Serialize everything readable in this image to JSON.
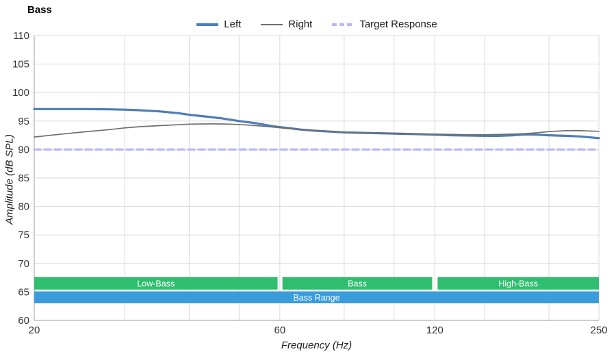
{
  "title": "Bass",
  "axes": {
    "xlabel": "Frequency (Hz)",
    "ylabel": "Amplitude (dB SPL)"
  },
  "legend": [
    {
      "label": "Left",
      "color": "#4e7db7",
      "swatch_width": 4,
      "dash": ""
    },
    {
      "label": "Right",
      "color": "#6e6e6e",
      "swatch_width": 2,
      "dash": ""
    },
    {
      "label": "Target Response",
      "color": "#b6b9f5",
      "swatch_width": 4,
      "dash": "7,4"
    }
  ],
  "chart_data": {
    "type": "line",
    "title": "Bass",
    "xlabel": "Frequency (Hz)",
    "ylabel": "Amplitude (dB SPL)",
    "x_scale": "log",
    "xlim": [
      20,
      250
    ],
    "ylim": [
      60,
      110
    ],
    "y_ticks": [
      60,
      65,
      70,
      75,
      80,
      85,
      90,
      95,
      100,
      105,
      110
    ],
    "x_gridlines": [
      20,
      30,
      40,
      50,
      60,
      80,
      100,
      120,
      150,
      200,
      250
    ],
    "x_ticks_labeled": [
      20,
      60,
      120,
      250
    ],
    "grid": true,
    "legend_position": "top-center",
    "colors": {
      "gridline": "#d9d9d9",
      "axis_line": "#9e9e9e",
      "tick_text": "#333333",
      "band_green": "#2fbe6f",
      "band_blue": "#3b9cdc",
      "band_text": "#ffffff"
    },
    "series": [
      {
        "name": "Left",
        "color": "#4e7db7",
        "width": 3.2,
        "dash": "",
        "x": [
          20,
          22,
          25,
          28,
          30,
          32,
          35,
          38,
          40,
          43,
          46,
          50,
          54,
          58,
          62,
          66,
          70,
          75,
          80,
          85,
          90,
          100,
          110,
          120,
          130,
          140,
          150,
          160,
          170,
          180,
          190,
          200,
          215,
          230,
          250
        ],
        "y": [
          97.1,
          97.1,
          97.1,
          97.05,
          97.0,
          96.9,
          96.7,
          96.4,
          96.1,
          95.8,
          95.5,
          95.0,
          94.6,
          94.1,
          93.8,
          93.5,
          93.3,
          93.15,
          93.0,
          92.95,
          92.9,
          92.8,
          92.7,
          92.6,
          92.5,
          92.45,
          92.4,
          92.4,
          92.5,
          92.65,
          92.6,
          92.5,
          92.4,
          92.3,
          92.0
        ]
      },
      {
        "name": "Right",
        "color": "#6e6e6e",
        "width": 1.7,
        "dash": "",
        "x": [
          20,
          22,
          25,
          28,
          30,
          32,
          35,
          38,
          40,
          43,
          46,
          50,
          54,
          58,
          62,
          66,
          70,
          75,
          80,
          85,
          90,
          100,
          110,
          120,
          130,
          140,
          150,
          160,
          170,
          180,
          190,
          200,
          215,
          230,
          250
        ],
        "y": [
          92.2,
          92.6,
          93.1,
          93.5,
          93.8,
          94.0,
          94.2,
          94.35,
          94.45,
          94.5,
          94.5,
          94.4,
          94.2,
          93.95,
          93.7,
          93.5,
          93.35,
          93.2,
          93.05,
          92.95,
          92.9,
          92.8,
          92.75,
          92.7,
          92.65,
          92.6,
          92.6,
          92.65,
          92.7,
          92.8,
          92.95,
          93.15,
          93.3,
          93.3,
          93.2
        ]
      },
      {
        "name": "Target Response",
        "color": "#b6b9f5",
        "width": 3.2,
        "dash": "9,6",
        "x": [
          20,
          250
        ],
        "y": [
          90,
          90
        ]
      }
    ],
    "bands": [
      {
        "label": "Low-Bass",
        "x_from": 20,
        "x_to": 59.4,
        "y_from": 65.4,
        "y_to": 67.6,
        "color": "#2fbe6f"
      },
      {
        "label": "Bass",
        "x_from": 60.7,
        "x_to": 118.6,
        "y_from": 65.4,
        "y_to": 67.6,
        "color": "#2fbe6f"
      },
      {
        "label": "High-Bass",
        "x_from": 121.5,
        "x_to": 250,
        "y_from": 65.4,
        "y_to": 67.6,
        "color": "#2fbe6f"
      },
      {
        "label": "Bass Range",
        "x_from": 20,
        "x_to": 250,
        "y_from": 63.0,
        "y_to": 65.1,
        "color": "#3b9cdc"
      }
    ]
  }
}
